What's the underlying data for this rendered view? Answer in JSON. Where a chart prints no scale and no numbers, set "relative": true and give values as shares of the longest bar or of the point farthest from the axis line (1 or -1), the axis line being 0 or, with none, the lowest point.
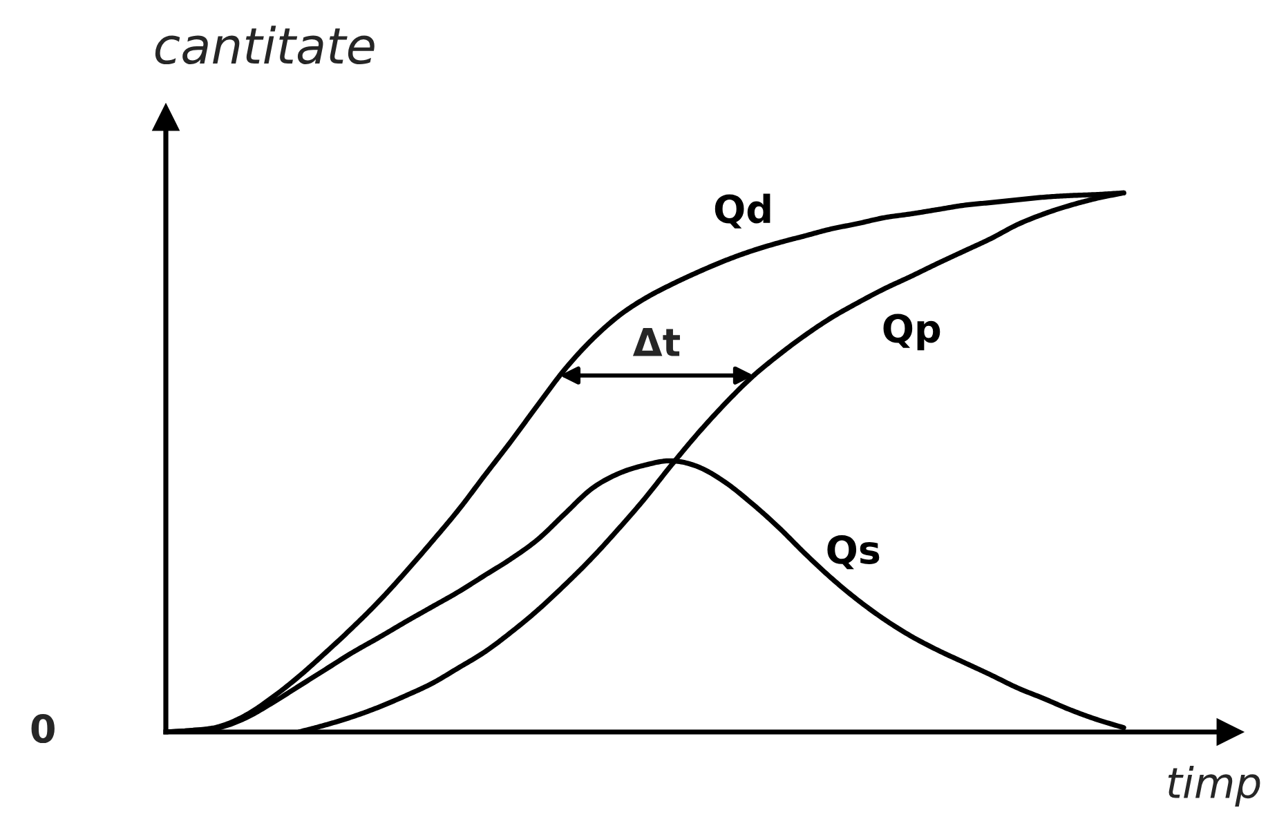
{
  "chart_data": {
    "type": "line",
    "relative": true,
    "xlabel": "timp",
    "ylabel": "cantitate",
    "categories": [
      null,
      null,
      null,
      null,
      null,
      null,
      null,
      null,
      null,
      null,
      null,
      null,
      null,
      null,
      null,
      null,
      null,
      null,
      null,
      null,
      null,
      null,
      null,
      null,
      null,
      null,
      null,
      null,
      null,
      null,
      null,
      null,
      null,
      null,
      null,
      null,
      null
    ],
    "series": [
      {
        "name": "Qd",
        "color": "#000000",
        "values": [
          0,
          0.003,
          0.01,
          0.031,
          0.064,
          0.103,
          0.147,
          0.193,
          0.242,
          0.296,
          0.353,
          0.412,
          0.477,
          0.541,
          0.608,
          0.673,
          0.727,
          0.771,
          0.804,
          0.83,
          0.853,
          0.874,
          0.892,
          0.907,
          0.92,
          0.933,
          0.943,
          0.954,
          0.961,
          0.969,
          0.977,
          0.982,
          0.987,
          0.992,
          0.995,
          0.997,
          1.0
        ]
      },
      {
        "name": "Qp",
        "color": "#000000",
        "values": [
          null,
          null,
          null,
          null,
          null,
          0,
          0.013,
          0.028,
          0.046,
          0.067,
          0.09,
          0.119,
          0.149,
          0.186,
          0.227,
          0.273,
          0.322,
          0.376,
          0.433,
          0.495,
          0.554,
          0.608,
          0.657,
          0.698,
          0.735,
          0.768,
          0.796,
          0.822,
          0.845,
          0.869,
          0.892,
          0.915,
          0.941,
          0.961,
          0.977,
          0.99,
          1.0
        ]
      },
      {
        "name": "Qs",
        "color": "#000000",
        "values": [
          0,
          0.003,
          0.008,
          0.026,
          0.054,
          0.085,
          0.116,
          0.147,
          0.175,
          0.204,
          0.232,
          0.26,
          0.291,
          0.322,
          0.358,
          0.405,
          0.451,
          0.479,
          0.495,
          0.503,
          0.492,
          0.464,
          0.425,
          0.381,
          0.332,
          0.286,
          0.245,
          0.209,
          0.178,
          0.152,
          0.129,
          0.106,
          0.082,
          0.062,
          0.041,
          0.023,
          0.008
        ]
      }
    ],
    "annotations": [
      "Δt",
      "0"
    ]
  }
}
